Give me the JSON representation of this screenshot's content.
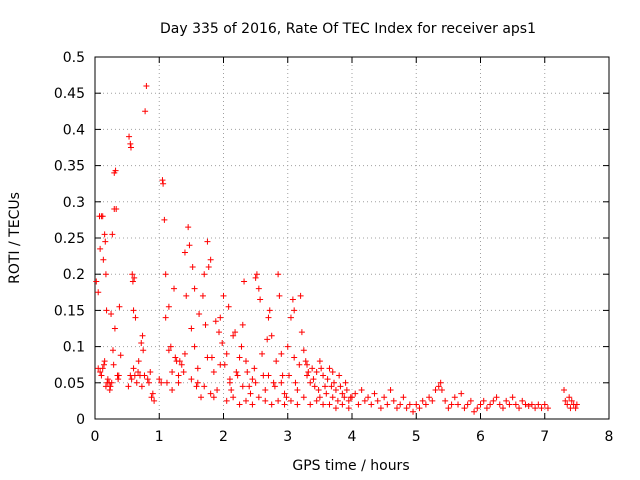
{
  "chart_data": {
    "type": "scatter",
    "title": "Day 335 of 2016, Rate Of TEC Index for receiver aps1",
    "xlabel": "GPS time / hours",
    "ylabel": "ROTI / TECUs",
    "xlim": [
      0,
      8
    ],
    "ylim": [
      0,
      0.5
    ],
    "x_ticks": [
      0,
      1,
      2,
      3,
      4,
      5,
      6,
      7,
      8
    ],
    "y_ticks": [
      0,
      0.05,
      0.1,
      0.15,
      0.2,
      0.25,
      0.3,
      0.35,
      0.4,
      0.45,
      0.5
    ],
    "x_tick_labels": [
      "0",
      "1",
      "2",
      "3",
      "4",
      "5",
      "6",
      "7",
      "8"
    ],
    "y_tick_labels": [
      "0",
      "0.05",
      "0.1",
      "0.15",
      "0.2",
      "0.25",
      "0.3",
      "0.35",
      "0.4",
      "0.45",
      "0.5"
    ],
    "grid": true,
    "marker": "+",
    "series": [
      {
        "name": "aps1",
        "color": "#ff0000",
        "points": [
          [
            0.02,
            0.19
          ],
          [
            0.05,
            0.175
          ],
          [
            0.07,
            0.28
          ],
          [
            0.08,
            0.235
          ],
          [
            0.1,
            0.28
          ],
          [
            0.12,
            0.28
          ],
          [
            0.13,
            0.22
          ],
          [
            0.14,
            0.075
          ],
          [
            0.15,
            0.255
          ],
          [
            0.16,
            0.245
          ],
          [
            0.17,
            0.2
          ],
          [
            0.18,
            0.15
          ],
          [
            0.2,
            0.055
          ],
          [
            0.22,
            0.05
          ],
          [
            0.24,
            0.045
          ],
          [
            0.25,
            0.145
          ],
          [
            0.27,
            0.255
          ],
          [
            0.28,
            0.095
          ],
          [
            0.3,
            0.29
          ],
          [
            0.3,
            0.34
          ],
          [
            0.32,
            0.343
          ],
          [
            0.33,
            0.29
          ],
          [
            0.35,
            0.06
          ],
          [
            0.37,
            0.06
          ],
          [
            0.38,
            0.155
          ],
          [
            0.4,
            0.088
          ],
          [
            0.05,
            0.07
          ],
          [
            0.08,
            0.065
          ],
          [
            0.1,
            0.06
          ],
          [
            0.12,
            0.07
          ],
          [
            0.15,
            0.08
          ],
          [
            0.17,
            0.045
          ],
          [
            0.19,
            0.05
          ],
          [
            0.23,
            0.04
          ],
          [
            0.26,
            0.05
          ],
          [
            0.29,
            0.075
          ],
          [
            0.31,
            0.125
          ],
          [
            0.36,
            0.055
          ],
          [
            0.52,
            0.045
          ],
          [
            0.53,
            0.39
          ],
          [
            0.55,
            0.38
          ],
          [
            0.56,
            0.375
          ],
          [
            0.57,
            0.055
          ],
          [
            0.58,
            0.2
          ],
          [
            0.59,
            0.19
          ],
          [
            0.6,
            0.15
          ],
          [
            0.61,
            0.195
          ],
          [
            0.62,
            0.06
          ],
          [
            0.63,
            0.14
          ],
          [
            0.65,
            0.05
          ],
          [
            0.67,
            0.065
          ],
          [
            0.7,
            0.06
          ],
          [
            0.72,
            0.105
          ],
          [
            0.74,
            0.115
          ],
          [
            0.75,
            0.095
          ],
          [
            0.77,
            0.06
          ],
          [
            0.8,
            0.46
          ],
          [
            0.78,
            0.425
          ],
          [
            0.82,
            0.055
          ],
          [
            0.84,
            0.05
          ],
          [
            0.86,
            0.065
          ],
          [
            0.88,
            0.03
          ],
          [
            0.9,
            0.035
          ],
          [
            0.92,
            0.025
          ],
          [
            0.55,
            0.06
          ],
          [
            0.6,
            0.07
          ],
          [
            0.68,
            0.08
          ],
          [
            0.73,
            0.045
          ],
          [
            1.0,
            0.055
          ],
          [
            1.03,
            0.05
          ],
          [
            1.05,
            0.33
          ],
          [
            1.06,
            0.325
          ],
          [
            1.08,
            0.275
          ],
          [
            1.1,
            0.2
          ],
          [
            1.12,
            0.05
          ],
          [
            1.15,
            0.155
          ],
          [
            1.18,
            0.1
          ],
          [
            1.2,
            0.04
          ],
          [
            1.23,
            0.18
          ],
          [
            1.25,
            0.085
          ],
          [
            1.27,
            0.08
          ],
          [
            1.3,
            0.06
          ],
          [
            1.32,
            0.08
          ],
          [
            1.35,
            0.075
          ],
          [
            1.38,
            0.065
          ],
          [
            1.4,
            0.23
          ],
          [
            1.42,
            0.17
          ],
          [
            1.45,
            0.265
          ],
          [
            1.47,
            0.24
          ],
          [
            1.5,
            0.125
          ],
          [
            1.52,
            0.21
          ],
          [
            1.55,
            0.18
          ],
          [
            1.58,
            0.045
          ],
          [
            1.6,
            0.05
          ],
          [
            1.62,
            0.145
          ],
          [
            1.65,
            0.03
          ],
          [
            1.68,
            0.17
          ],
          [
            1.7,
            0.2
          ],
          [
            1.72,
            0.13
          ],
          [
            1.75,
            0.245
          ],
          [
            1.77,
            0.21
          ],
          [
            1.8,
            0.22
          ],
          [
            1.82,
            0.085
          ],
          [
            1.85,
            0.065
          ],
          [
            1.88,
            0.135
          ],
          [
            1.9,
            0.04
          ],
          [
            1.93,
            0.12
          ],
          [
            1.95,
            0.14
          ],
          [
            1.98,
            0.105
          ],
          [
            1.1,
            0.14
          ],
          [
            1.15,
            0.095
          ],
          [
            1.2,
            0.065
          ],
          [
            1.3,
            0.05
          ],
          [
            1.4,
            0.09
          ],
          [
            1.5,
            0.055
          ],
          [
            1.55,
            0.1
          ],
          [
            1.6,
            0.07
          ],
          [
            1.7,
            0.045
          ],
          [
            1.75,
            0.085
          ],
          [
            1.8,
            0.035
          ],
          [
            1.85,
            0.03
          ],
          [
            1.95,
            0.075
          ],
          [
            2.0,
            0.17
          ],
          [
            2.02,
            0.075
          ],
          [
            2.05,
            0.09
          ],
          [
            2.08,
            0.155
          ],
          [
            2.1,
            0.05
          ],
          [
            2.12,
            0.04
          ],
          [
            2.15,
            0.115
          ],
          [
            2.18,
            0.12
          ],
          [
            2.2,
            0.065
          ],
          [
            2.22,
            0.06
          ],
          [
            2.25,
            0.085
          ],
          [
            2.28,
            0.1
          ],
          [
            2.3,
            0.13
          ],
          [
            2.32,
            0.19
          ],
          [
            2.35,
            0.08
          ],
          [
            2.37,
            0.065
          ],
          [
            2.4,
            0.045
          ],
          [
            2.42,
            0.035
          ],
          [
            2.45,
            0.055
          ],
          [
            2.48,
            0.07
          ],
          [
            2.5,
            0.195
          ],
          [
            2.52,
            0.2
          ],
          [
            2.55,
            0.18
          ],
          [
            2.57,
            0.165
          ],
          [
            2.6,
            0.09
          ],
          [
            2.62,
            0.06
          ],
          [
            2.65,
            0.04
          ],
          [
            2.68,
            0.11
          ],
          [
            2.7,
            0.14
          ],
          [
            2.72,
            0.15
          ],
          [
            2.75,
            0.115
          ],
          [
            2.78,
            0.05
          ],
          [
            2.8,
            0.045
          ],
          [
            2.82,
            0.08
          ],
          [
            2.85,
            0.2
          ],
          [
            2.87,
            0.17
          ],
          [
            2.9,
            0.09
          ],
          [
            2.92,
            0.06
          ],
          [
            2.95,
            0.035
          ],
          [
            2.98,
            0.03
          ],
          [
            2.05,
            0.025
          ],
          [
            2.15,
            0.03
          ],
          [
            2.25,
            0.02
          ],
          [
            2.35,
            0.025
          ],
          [
            2.45,
            0.02
          ],
          [
            2.55,
            0.03
          ],
          [
            2.65,
            0.025
          ],
          [
            2.75,
            0.02
          ],
          [
            2.85,
            0.025
          ],
          [
            2.95,
            0.02
          ],
          [
            2.1,
            0.055
          ],
          [
            2.3,
            0.045
          ],
          [
            2.5,
            0.05
          ],
          [
            2.7,
            0.06
          ],
          [
            2.9,
            0.05
          ],
          [
            3.0,
            0.1
          ],
          [
            3.02,
            0.06
          ],
          [
            3.05,
            0.14
          ],
          [
            3.08,
            0.165
          ],
          [
            3.1,
            0.15
          ],
          [
            3.12,
            0.05
          ],
          [
            3.15,
            0.04
          ],
          [
            3.18,
            0.075
          ],
          [
            3.2,
            0.17
          ],
          [
            3.22,
            0.12
          ],
          [
            3.25,
            0.095
          ],
          [
            3.28,
            0.08
          ],
          [
            3.3,
            0.06
          ],
          [
            3.32,
            0.065
          ],
          [
            3.35,
            0.05
          ],
          [
            3.38,
            0.07
          ],
          [
            3.4,
            0.055
          ],
          [
            3.42,
            0.045
          ],
          [
            3.45,
            0.065
          ],
          [
            3.48,
            0.04
          ],
          [
            3.5,
            0.03
          ],
          [
            3.52,
            0.07
          ],
          [
            3.55,
            0.06
          ],
          [
            3.58,
            0.045
          ],
          [
            3.6,
            0.035
          ],
          [
            3.62,
            0.055
          ],
          [
            3.65,
            0.07
          ],
          [
            3.68,
            0.045
          ],
          [
            3.7,
            0.03
          ],
          [
            3.72,
            0.05
          ],
          [
            3.75,
            0.04
          ],
          [
            3.78,
            0.025
          ],
          [
            3.8,
            0.06
          ],
          [
            3.82,
            0.045
          ],
          [
            3.85,
            0.035
          ],
          [
            3.88,
            0.03
          ],
          [
            3.9,
            0.05
          ],
          [
            3.92,
            0.04
          ],
          [
            3.95,
            0.025
          ],
          [
            3.98,
            0.03
          ],
          [
            3.05,
            0.025
          ],
          [
            3.15,
            0.02
          ],
          [
            3.25,
            0.03
          ],
          [
            3.35,
            0.02
          ],
          [
            3.45,
            0.025
          ],
          [
            3.55,
            0.02
          ],
          [
            3.65,
            0.02
          ],
          [
            3.75,
            0.015
          ],
          [
            3.85,
            0.02
          ],
          [
            3.95,
            0.015
          ],
          [
            3.1,
            0.085
          ],
          [
            3.3,
            0.075
          ],
          [
            3.5,
            0.08
          ],
          [
            3.7,
            0.065
          ],
          [
            4.0,
            0.03
          ],
          [
            4.05,
            0.035
          ],
          [
            4.1,
            0.02
          ],
          [
            4.15,
            0.04
          ],
          [
            4.2,
            0.025
          ],
          [
            4.25,
            0.03
          ],
          [
            4.3,
            0.02
          ],
          [
            4.35,
            0.035
          ],
          [
            4.4,
            0.025
          ],
          [
            4.45,
            0.015
          ],
          [
            4.5,
            0.03
          ],
          [
            4.55,
            0.02
          ],
          [
            4.6,
            0.04
          ],
          [
            4.65,
            0.025
          ],
          [
            4.7,
            0.015
          ],
          [
            4.75,
            0.02
          ],
          [
            4.8,
            0.03
          ],
          [
            4.85,
            0.015
          ],
          [
            4.9,
            0.02
          ],
          [
            4.95,
            0.01
          ],
          [
            5.0,
            0.02
          ],
          [
            5.05,
            0.015
          ],
          [
            5.1,
            0.025
          ],
          [
            5.15,
            0.02
          ],
          [
            5.2,
            0.03
          ],
          [
            5.25,
            0.025
          ],
          [
            5.3,
            0.04
          ],
          [
            5.35,
            0.045
          ],
          [
            5.38,
            0.05
          ],
          [
            5.4,
            0.04
          ],
          [
            5.45,
            0.025
          ],
          [
            5.5,
            0.015
          ],
          [
            5.55,
            0.02
          ],
          [
            5.6,
            0.03
          ],
          [
            5.65,
            0.02
          ],
          [
            5.7,
            0.035
          ],
          [
            5.75,
            0.015
          ],
          [
            5.8,
            0.02
          ],
          [
            5.85,
            0.025
          ],
          [
            5.9,
            0.01
          ],
          [
            5.95,
            0.015
          ],
          [
            6.0,
            0.02
          ],
          [
            6.05,
            0.025
          ],
          [
            6.1,
            0.015
          ],
          [
            6.15,
            0.02
          ],
          [
            6.2,
            0.025
          ],
          [
            6.25,
            0.03
          ],
          [
            6.3,
            0.02
          ],
          [
            6.35,
            0.015
          ],
          [
            6.4,
            0.025
          ],
          [
            6.45,
            0.02
          ],
          [
            6.5,
            0.03
          ],
          [
            6.55,
            0.02
          ],
          [
            6.6,
            0.015
          ],
          [
            6.65,
            0.025
          ],
          [
            6.7,
            0.02
          ],
          [
            6.75,
            0.018
          ],
          [
            6.8,
            0.02
          ],
          [
            6.85,
            0.015
          ],
          [
            6.9,
            0.02
          ],
          [
            6.95,
            0.015
          ],
          [
            7.0,
            0.02
          ],
          [
            7.05,
            0.015
          ],
          [
            7.3,
            0.04
          ],
          [
            7.32,
            0.025
          ],
          [
            7.35,
            0.02
          ],
          [
            7.38,
            0.03
          ],
          [
            7.4,
            0.015
          ],
          [
            7.42,
            0.025
          ],
          [
            7.45,
            0.02
          ],
          [
            7.48,
            0.015
          ],
          [
            7.5,
            0.02
          ]
        ]
      }
    ]
  }
}
